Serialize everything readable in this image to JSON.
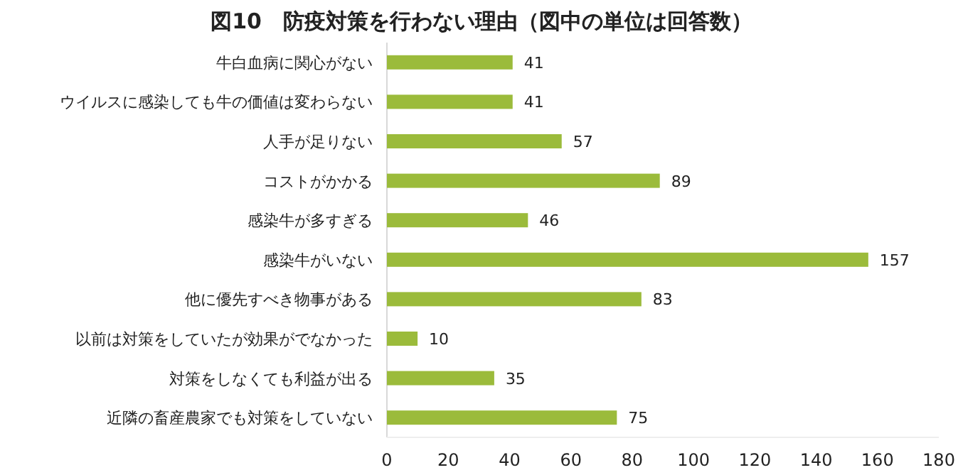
{
  "chart_data": {
    "type": "bar",
    "orientation": "horizontal",
    "title": "図10　防疫対策を行わない理由（図中の単位は回答数）",
    "categories": [
      "牛白血病に関心がない",
      "ウイルスに感染しても牛の価値は変わらない",
      "人手が足りない",
      "コストがかかる",
      "感染牛が多すぎる",
      "感染牛がいない",
      "他に優先すべき物事がある",
      "以前は対策をしていたが効果がでなかった",
      "対策をしなくても利益が出る",
      "近隣の畜産農家でも対策をしていない"
    ],
    "values": [
      41,
      41,
      57,
      89,
      46,
      157,
      83,
      10,
      35,
      75
    ],
    "color": "#9bbb3b",
    "data_labels": true,
    "xlim": [
      0,
      180
    ],
    "xticks": [
      0,
      20,
      40,
      60,
      80,
      100,
      120,
      140,
      160,
      180
    ]
  }
}
